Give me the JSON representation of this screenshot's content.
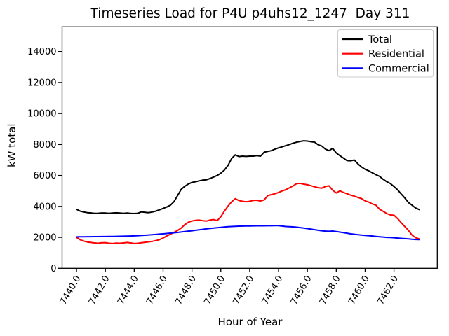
{
  "figure": {
    "title": "Timeseries Load for P4U p4uhs12_1247  Day 311",
    "xlabel": "Hour of Year",
    "ylabel": "kW total"
  },
  "legend": {
    "position": "upper right",
    "entries": [
      {
        "label": "Total",
        "color": "#000000"
      },
      {
        "label": "Residential",
        "color": "#ff0000"
      },
      {
        "label": "Commercial",
        "color": "#0000ff"
      }
    ]
  },
  "chart_data": {
    "type": "line",
    "title": "Timeseries Load for P4U p4uhs12_1247  Day 311",
    "xlabel": "Hour of Year",
    "ylabel": "kW total",
    "grid": false,
    "xlim": [
      7439.0,
      7465.0
    ],
    "ylim": [
      0,
      15600
    ],
    "x_start": 7440.0,
    "x_step": 0.25,
    "xtick_values": [
      7440,
      7442,
      7444,
      7446,
      7448,
      7450,
      7452,
      7454,
      7456,
      7458,
      7460,
      7462
    ],
    "xtick_labels": [
      "7440.0",
      "7442.0",
      "7444.0",
      "7446.0",
      "7448.0",
      "7450.0",
      "7452.0",
      "7454.0",
      "7456.0",
      "7458.0",
      "7460.0",
      "7462.0"
    ],
    "ytick_values": [
      0,
      2000,
      4000,
      6000,
      8000,
      10000,
      12000,
      14000
    ],
    "ytick_labels": [
      "0",
      "2000",
      "4000",
      "6000",
      "8000",
      "10000",
      "12000",
      "14000"
    ],
    "series": [
      {
        "name": "Total",
        "color": "#000000",
        "values": [
          3810,
          3700,
          3640,
          3600,
          3580,
          3550,
          3560,
          3580,
          3570,
          3550,
          3570,
          3590,
          3570,
          3550,
          3570,
          3550,
          3540,
          3560,
          3650,
          3620,
          3600,
          3640,
          3700,
          3780,
          3870,
          3960,
          4080,
          4300,
          4700,
          5100,
          5300,
          5450,
          5550,
          5600,
          5650,
          5700,
          5720,
          5800,
          5900,
          6000,
          6150,
          6350,
          6650,
          7100,
          7330,
          7220,
          7250,
          7230,
          7250,
          7250,
          7280,
          7250,
          7500,
          7550,
          7600,
          7700,
          7780,
          7850,
          7920,
          8000,
          8080,
          8150,
          8200,
          8240,
          8220,
          8180,
          8150,
          7980,
          7900,
          7700,
          7600,
          7750,
          7450,
          7280,
          7120,
          6960,
          6950,
          7000,
          6750,
          6550,
          6400,
          6300,
          6170,
          6050,
          5940,
          5750,
          5600,
          5480,
          5280,
          5080,
          4800,
          4550,
          4250,
          4080,
          3900,
          3800
        ]
      },
      {
        "name": "Residential",
        "color": "#ff0000",
        "values": [
          2000,
          1850,
          1760,
          1700,
          1670,
          1640,
          1620,
          1650,
          1660,
          1620,
          1600,
          1630,
          1620,
          1640,
          1670,
          1640,
          1600,
          1620,
          1650,
          1680,
          1710,
          1740,
          1790,
          1850,
          1960,
          2090,
          2200,
          2320,
          2450,
          2600,
          2820,
          2980,
          3060,
          3100,
          3120,
          3080,
          3050,
          3120,
          3150,
          3080,
          3340,
          3700,
          4020,
          4300,
          4500,
          4380,
          4330,
          4300,
          4330,
          4390,
          4400,
          4350,
          4420,
          4700,
          4760,
          4820,
          4900,
          5000,
          5080,
          5200,
          5320,
          5470,
          5490,
          5440,
          5400,
          5340,
          5270,
          5210,
          5180,
          5290,
          5330,
          5050,
          4870,
          5010,
          4900,
          4820,
          4730,
          4660,
          4580,
          4510,
          4360,
          4280,
          4160,
          4080,
          3820,
          3680,
          3540,
          3450,
          3430,
          3220,
          2950,
          2700,
          2450,
          2150,
          1980,
          1900
        ]
      },
      {
        "name": "Commercial",
        "color": "#0000ff",
        "values": [
          2030,
          2035,
          2040,
          2042,
          2045,
          2047,
          2050,
          2052,
          2055,
          2058,
          2060,
          2065,
          2070,
          2075,
          2082,
          2090,
          2100,
          2112,
          2125,
          2140,
          2155,
          2172,
          2190,
          2210,
          2230,
          2252,
          2275,
          2298,
          2320,
          2348,
          2378,
          2405,
          2430,
          2460,
          2490,
          2520,
          2550,
          2578,
          2605,
          2628,
          2650,
          2672,
          2692,
          2705,
          2715,
          2725,
          2732,
          2738,
          2742,
          2745,
          2748,
          2748,
          2750,
          2752,
          2755,
          2758,
          2760,
          2730,
          2705,
          2690,
          2680,
          2660,
          2630,
          2600,
          2570,
          2532,
          2495,
          2462,
          2430,
          2405,
          2390,
          2412,
          2380,
          2342,
          2305,
          2268,
          2230,
          2200,
          2172,
          2150,
          2130,
          2110,
          2088,
          2062,
          2040,
          2020,
          2000,
          1988,
          1975,
          1955,
          1935,
          1915,
          1900,
          1882,
          1865,
          1852
        ]
      }
    ]
  }
}
